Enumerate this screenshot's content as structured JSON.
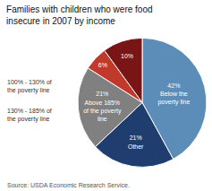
{
  "chart_data": {
    "type": "pie",
    "title": "Families with children who were food\ninsecure in 2007 by income",
    "categories": [
      "Below the\npoverty line",
      "Other",
      "Above 185%\nof the poverty\nline",
      null,
      null
    ],
    "values": [
      42,
      21,
      21,
      6,
      10
    ],
    "value_labels": [
      "42%",
      "21%",
      "21%",
      "6%",
      "10%"
    ],
    "colors": [
      "#5b8db8",
      "#1f3d6e",
      "#808080",
      "#c0392b",
      "#7a1515"
    ],
    "data_labels": true,
    "annotations": [
      "100% - 130% of\nthe poverty line",
      "130% - 185% of\nthe poverty line"
    ],
    "source": "Source: USDA Economic Research Service."
  }
}
